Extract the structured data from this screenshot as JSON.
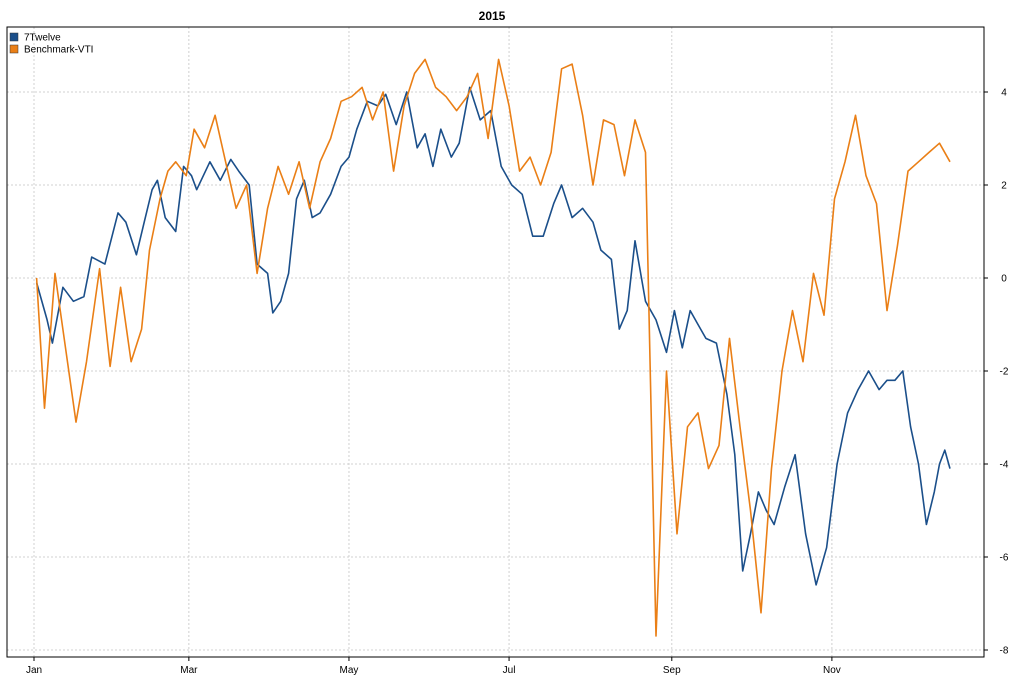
{
  "chart_data": {
    "type": "line",
    "title": "2015",
    "xlabel": "",
    "ylabel": "",
    "x_axis_type": "date",
    "xlim": [
      "2015-01-01",
      "2015-12-16"
    ],
    "x_ticks": [
      {
        "date": "2015-01-01",
        "label": "Jan"
      },
      {
        "date": "2015-03-01",
        "label": "Mar"
      },
      {
        "date": "2015-05-01",
        "label": "May"
      },
      {
        "date": "2015-07-01",
        "label": "Jul"
      },
      {
        "date": "2015-09-01",
        "label": "Sep"
      },
      {
        "date": "2015-11-01",
        "label": "Nov"
      }
    ],
    "ylim": [
      -8.2,
      5.4
    ],
    "y_ticks": [
      -8,
      -6,
      -4,
      -2,
      0,
      2,
      4
    ],
    "y_axis_side": "right",
    "grid": true,
    "legend_position": "top-left",
    "series": [
      {
        "name": "7Twelve",
        "color": "#1b4f8a",
        "points": [
          [
            "2015-01-02",
            -0.1
          ],
          [
            "2015-01-06",
            -0.9
          ],
          [
            "2015-01-08",
            -1.4
          ],
          [
            "2015-01-12",
            -0.2
          ],
          [
            "2015-01-16",
            -0.5
          ],
          [
            "2015-01-20",
            -0.4
          ],
          [
            "2015-01-23",
            0.45
          ],
          [
            "2015-01-28",
            0.3
          ],
          [
            "2015-02-02",
            1.4
          ],
          [
            "2015-02-05",
            1.2
          ],
          [
            "2015-02-09",
            0.5
          ],
          [
            "2015-02-12",
            1.2
          ],
          [
            "2015-02-15",
            1.9
          ],
          [
            "2015-02-17",
            2.1
          ],
          [
            "2015-02-20",
            1.3
          ],
          [
            "2015-02-24",
            1.0
          ],
          [
            "2015-02-27",
            2.4
          ],
          [
            "2015-03-02",
            2.2
          ],
          [
            "2015-03-04",
            1.9
          ],
          [
            "2015-03-09",
            2.5
          ],
          [
            "2015-03-13",
            2.1
          ],
          [
            "2015-03-17",
            2.55
          ],
          [
            "2015-03-20",
            2.3
          ],
          [
            "2015-03-24",
            2.0
          ],
          [
            "2015-03-27",
            0.3
          ],
          [
            "2015-03-31",
            0.1
          ],
          [
            "2015-04-02",
            -0.75
          ],
          [
            "2015-04-05",
            -0.5
          ],
          [
            "2015-04-08",
            0.1
          ],
          [
            "2015-04-11",
            1.7
          ],
          [
            "2015-04-14",
            2.1
          ],
          [
            "2015-04-17",
            1.3
          ],
          [
            "2015-04-20",
            1.4
          ],
          [
            "2015-04-24",
            1.8
          ],
          [
            "2015-04-28",
            2.4
          ],
          [
            "2015-05-01",
            2.6
          ],
          [
            "2015-05-04",
            3.2
          ],
          [
            "2015-05-08",
            3.8
          ],
          [
            "2015-05-12",
            3.7
          ],
          [
            "2015-05-15",
            3.95
          ],
          [
            "2015-05-19",
            3.3
          ],
          [
            "2015-05-23",
            4.0
          ],
          [
            "2015-05-27",
            2.8
          ],
          [
            "2015-05-30",
            3.1
          ],
          [
            "2015-06-02",
            2.4
          ],
          [
            "2015-06-05",
            3.2
          ],
          [
            "2015-06-09",
            2.6
          ],
          [
            "2015-06-12",
            2.9
          ],
          [
            "2015-06-16",
            4.1
          ],
          [
            "2015-06-20",
            3.4
          ],
          [
            "2015-06-24",
            3.6
          ],
          [
            "2015-06-28",
            2.4
          ],
          [
            "2015-07-02",
            2.0
          ],
          [
            "2015-07-06",
            1.8
          ],
          [
            "2015-07-10",
            0.9
          ],
          [
            "2015-07-14",
            0.9
          ],
          [
            "2015-07-18",
            1.6
          ],
          [
            "2015-07-21",
            2.0
          ],
          [
            "2015-07-25",
            1.3
          ],
          [
            "2015-07-29",
            1.5
          ],
          [
            "2015-08-02",
            1.2
          ],
          [
            "2015-08-05",
            0.6
          ],
          [
            "2015-08-09",
            0.4
          ],
          [
            "2015-08-12",
            -1.1
          ],
          [
            "2015-08-15",
            -0.7
          ],
          [
            "2015-08-18",
            0.8
          ],
          [
            "2015-08-22",
            -0.5
          ],
          [
            "2015-08-26",
            -0.9
          ],
          [
            "2015-08-30",
            -1.6
          ],
          [
            "2015-09-02",
            -0.7
          ],
          [
            "2015-09-05",
            -1.5
          ],
          [
            "2015-09-08",
            -0.7
          ],
          [
            "2015-09-11",
            -1.0
          ],
          [
            "2015-09-14",
            -1.3
          ],
          [
            "2015-09-18",
            -1.4
          ],
          [
            "2015-09-22",
            -2.5
          ],
          [
            "2015-09-25",
            -3.8
          ],
          [
            "2015-09-28",
            -6.3
          ],
          [
            "2015-10-01",
            -5.5
          ],
          [
            "2015-10-04",
            -4.6
          ],
          [
            "2015-10-07",
            -5.0
          ],
          [
            "2015-10-10",
            -5.3
          ],
          [
            "2015-10-14",
            -4.5
          ],
          [
            "2015-10-18",
            -3.8
          ],
          [
            "2015-10-22",
            -5.5
          ],
          [
            "2015-10-26",
            -6.6
          ],
          [
            "2015-10-30",
            -5.8
          ],
          [
            "2015-11-03",
            -4.0
          ],
          [
            "2015-11-07",
            -2.9
          ],
          [
            "2015-11-11",
            -2.4
          ],
          [
            "2015-11-15",
            -2.0
          ],
          [
            "2015-11-19",
            -2.4
          ],
          [
            "2015-11-22",
            -2.2
          ],
          [
            "2015-11-25",
            -2.2
          ],
          [
            "2015-11-28",
            -2.0
          ],
          [
            "2015-12-01",
            -3.2
          ],
          [
            "2015-12-04",
            -4.0
          ],
          [
            "2015-12-07",
            -5.3
          ],
          [
            "2015-12-10",
            -4.6
          ],
          [
            "2015-12-12",
            -4.0
          ],
          [
            "2015-12-14",
            -3.7
          ],
          [
            "2015-12-16",
            -4.1
          ]
        ]
      },
      {
        "name": "Benchmark-VTI",
        "color": "#ea7f16",
        "points": [
          [
            "2015-01-02",
            0.0
          ],
          [
            "2015-01-05",
            -2.8
          ],
          [
            "2015-01-09",
            0.1
          ],
          [
            "2015-01-13",
            -1.5
          ],
          [
            "2015-01-17",
            -3.1
          ],
          [
            "2015-01-21",
            -1.8
          ],
          [
            "2015-01-26",
            0.2
          ],
          [
            "2015-01-30",
            -1.9
          ],
          [
            "2015-02-03",
            -0.2
          ],
          [
            "2015-02-07",
            -1.8
          ],
          [
            "2015-02-11",
            -1.1
          ],
          [
            "2015-02-14",
            0.6
          ],
          [
            "2015-02-18",
            1.7
          ],
          [
            "2015-02-21",
            2.3
          ],
          [
            "2015-02-24",
            2.5
          ],
          [
            "2015-02-28",
            2.2
          ],
          [
            "2015-03-03",
            3.2
          ],
          [
            "2015-03-07",
            2.8
          ],
          [
            "2015-03-11",
            3.5
          ],
          [
            "2015-03-15",
            2.5
          ],
          [
            "2015-03-19",
            1.5
          ],
          [
            "2015-03-23",
            2.0
          ],
          [
            "2015-03-27",
            0.1
          ],
          [
            "2015-03-31",
            1.5
          ],
          [
            "2015-04-04",
            2.4
          ],
          [
            "2015-04-08",
            1.8
          ],
          [
            "2015-04-12",
            2.5
          ],
          [
            "2015-04-16",
            1.5
          ],
          [
            "2015-04-20",
            2.5
          ],
          [
            "2015-04-24",
            3.0
          ],
          [
            "2015-04-28",
            3.8
          ],
          [
            "2015-05-02",
            3.9
          ],
          [
            "2015-05-06",
            4.1
          ],
          [
            "2015-05-10",
            3.4
          ],
          [
            "2015-05-14",
            4.0
          ],
          [
            "2015-05-18",
            2.3
          ],
          [
            "2015-05-22",
            3.7
          ],
          [
            "2015-05-26",
            4.4
          ],
          [
            "2015-05-30",
            4.7
          ],
          [
            "2015-06-03",
            4.1
          ],
          [
            "2015-06-07",
            3.9
          ],
          [
            "2015-06-11",
            3.6
          ],
          [
            "2015-06-15",
            3.9
          ],
          [
            "2015-06-19",
            4.4
          ],
          [
            "2015-06-23",
            3.0
          ],
          [
            "2015-06-27",
            4.7
          ],
          [
            "2015-07-01",
            3.7
          ],
          [
            "2015-07-05",
            2.3
          ],
          [
            "2015-07-09",
            2.6
          ],
          [
            "2015-07-13",
            2.0
          ],
          [
            "2015-07-17",
            2.7
          ],
          [
            "2015-07-21",
            4.5
          ],
          [
            "2015-07-25",
            4.6
          ],
          [
            "2015-07-29",
            3.5
          ],
          [
            "2015-08-02",
            2.0
          ],
          [
            "2015-08-06",
            3.4
          ],
          [
            "2015-08-10",
            3.3
          ],
          [
            "2015-08-14",
            2.2
          ],
          [
            "2015-08-18",
            3.4
          ],
          [
            "2015-08-22",
            2.7
          ],
          [
            "2015-08-26",
            -7.7
          ],
          [
            "2015-08-30",
            -2.0
          ],
          [
            "2015-09-03",
            -5.5
          ],
          [
            "2015-09-07",
            -3.2
          ],
          [
            "2015-09-11",
            -2.9
          ],
          [
            "2015-09-15",
            -4.1
          ],
          [
            "2015-09-19",
            -3.6
          ],
          [
            "2015-09-23",
            -1.3
          ],
          [
            "2015-09-27",
            -3.2
          ],
          [
            "2015-10-01",
            -5.0
          ],
          [
            "2015-10-05",
            -7.2
          ],
          [
            "2015-10-09",
            -4.1
          ],
          [
            "2015-10-13",
            -2.0
          ],
          [
            "2015-10-17",
            -0.7
          ],
          [
            "2015-10-21",
            -1.8
          ],
          [
            "2015-10-25",
            0.1
          ],
          [
            "2015-10-29",
            -0.8
          ],
          [
            "2015-11-02",
            1.7
          ],
          [
            "2015-11-06",
            2.5
          ],
          [
            "2015-11-10",
            3.5
          ],
          [
            "2015-11-14",
            2.2
          ],
          [
            "2015-11-18",
            1.6
          ],
          [
            "2015-11-22",
            -0.7
          ],
          [
            "2015-11-26",
            0.7
          ],
          [
            "2015-11-30",
            2.3
          ],
          [
            "2015-12-04",
            2.5
          ],
          [
            "2015-12-08",
            2.7
          ],
          [
            "2015-12-12",
            2.9
          ],
          [
            "2015-12-16",
            2.5
          ]
        ]
      }
    ]
  }
}
